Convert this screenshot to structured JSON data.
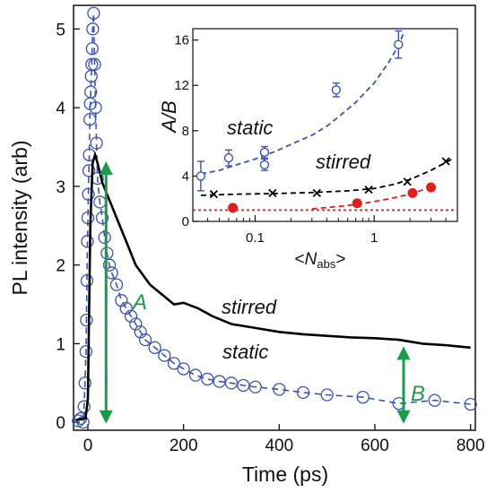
{
  "colors": {
    "static": "#3b55b0",
    "stirred": "#000000",
    "arrow": "#1a9a4a",
    "ratio_reference": "#e02020",
    "stirred_ratio_points": "#e02020"
  },
  "chart_data": [
    {
      "type": "line",
      "xlabel": "Time (ps)",
      "ylabel": "PL intensity (arb)",
      "xlim": [
        -30,
        810
      ],
      "ylim": [
        -0.1,
        5.3
      ],
      "xticks": [
        "0",
        "200",
        "400",
        "600",
        "800"
      ],
      "yticks": [
        "0",
        "1",
        "2",
        "3",
        "4",
        "5"
      ],
      "series": [
        {
          "name": "static",
          "style": "open-circles-dashed",
          "x": [
            -20,
            -15,
            -10,
            -8,
            -6,
            -4,
            -3,
            -2,
            -1,
            0,
            1,
            2,
            3,
            4,
            5,
            6,
            7,
            8,
            9,
            10,
            12,
            14,
            16,
            18,
            20,
            25,
            30,
            35,
            40,
            45,
            50,
            60,
            70,
            80,
            90,
            100,
            110,
            120,
            140,
            160,
            180,
            200,
            225,
            250,
            275,
            300,
            325,
            350,
            400,
            450,
            500,
            575,
            650,
            725,
            800
          ],
          "y": [
            0.02,
            0.05,
            0.0,
            0.2,
            0.5,
            0.9,
            1.3,
            1.8,
            2.3,
            2.6,
            2.9,
            3.2,
            3.4,
            3.85,
            4.05,
            4.2,
            4.4,
            4.55,
            4.75,
            5.0,
            5.2,
            4.55,
            4.0,
            3.55,
            3.1,
            2.8,
            2.6,
            2.35,
            2.15,
            2.0,
            1.9,
            1.75,
            1.55,
            1.45,
            1.35,
            1.25,
            1.15,
            1.05,
            0.95,
            0.85,
            0.75,
            0.68,
            0.6,
            0.55,
            0.52,
            0.5,
            0.47,
            0.45,
            0.42,
            0.38,
            0.35,
            0.32,
            0.24,
            0.28,
            0.23
          ]
        },
        {
          "name": "stirred",
          "style": "solid",
          "x": [
            -25,
            -5,
            0,
            5,
            10,
            15,
            20,
            30,
            40,
            60,
            80,
            100,
            130,
            160,
            180,
            200,
            230,
            260,
            300,
            350,
            400,
            450,
            500,
            550,
            600,
            650,
            700,
            750,
            800
          ],
          "y": [
            0.03,
            0.05,
            0.3,
            2.5,
            3.3,
            3.4,
            3.3,
            3.05,
            2.9,
            2.6,
            2.3,
            2.0,
            1.75,
            1.6,
            1.5,
            1.52,
            1.45,
            1.35,
            1.25,
            1.2,
            1.15,
            1.12,
            1.1,
            1.08,
            1.07,
            1.05,
            1.0,
            0.98,
            0.95
          ]
        }
      ],
      "annotations": [
        {
          "label": "A",
          "kind": "double-arrow",
          "x": 38,
          "y_from": 0.0,
          "y_to": 3.3
        },
        {
          "label": "B",
          "kind": "double-arrow",
          "x": 660,
          "y_from": 0.0,
          "y_to": 0.95
        },
        {
          "label": "stirred"
        },
        {
          "label": "static"
        }
      ]
    },
    {
      "type": "line",
      "xscale": "log",
      "ylabel": "A/B",
      "xlim": [
        0.03,
        5.0
      ],
      "ylim": [
        0,
        17
      ],
      "xticks": [
        "0.1",
        "1"
      ],
      "yticks": [
        "0",
        "4",
        "8",
        "12",
        "16"
      ],
      "series": [
        {
          "name": "static",
          "style": "open-circles-errorbars",
          "x": [
            0.035,
            0.06,
            0.12,
            0.12,
            0.48,
            1.6
          ],
          "y": [
            4.0,
            5.6,
            6.1,
            5.0,
            11.6,
            15.6
          ],
          "yerr": [
            1.3,
            0.7,
            0.5,
            0.5,
            0.6,
            1.2
          ],
          "fit_x": [
            0.035,
            0.05,
            0.07,
            0.1,
            0.15,
            0.2,
            0.3,
            0.4,
            0.5,
            0.7,
            1.0,
            1.3,
            1.6,
            1.8
          ],
          "fit_y": [
            4.2,
            4.5,
            5.0,
            5.5,
            6.2,
            6.8,
            7.6,
            8.4,
            9.2,
            10.5,
            12.2,
            13.9,
            15.5,
            16.8
          ]
        },
        {
          "name": "stirred",
          "style": "cross-markers",
          "x": [
            0.045,
            0.14,
            0.33,
            0.9,
            1.9,
            4.0
          ],
          "y": [
            2.4,
            2.5,
            2.5,
            2.8,
            3.5,
            5.3
          ],
          "fit_x": [
            0.035,
            0.07,
            0.14,
            0.3,
            0.6,
            1.0,
            1.5,
            2.0,
            3.0,
            4.0,
            4.5
          ],
          "fit_y": [
            2.3,
            2.4,
            2.45,
            2.55,
            2.7,
            2.9,
            3.3,
            3.7,
            4.5,
            5.2,
            5.5
          ]
        },
        {
          "name": "stirred-filled",
          "style": "filled-circles",
          "x": [
            0.065,
            0.72,
            2.1,
            3.0
          ],
          "y": [
            1.2,
            1.6,
            2.5,
            3.0
          ],
          "fit_x": [
            0.3,
            0.6,
            1.0,
            1.5,
            2.0,
            2.6,
            3.0
          ],
          "fit_y": [
            1.1,
            1.4,
            1.75,
            2.1,
            2.4,
            2.8,
            3.0
          ]
        },
        {
          "name": "reference",
          "style": "red-dotted",
          "y": 1.0
        }
      ],
      "annotations": [
        {
          "label": "static"
        },
        {
          "label": "stirred"
        }
      ]
    }
  ],
  "labels": {
    "main_xlabel": "Time (ps)",
    "main_ylabel": "PL intensity (arb)",
    "arrow_a": "A",
    "arrow_b": "B",
    "curve_stirred": "stirred",
    "curve_static": "static",
    "inset_static": "static",
    "inset_stirred": "stirred",
    "inset_ylabel": "A/B",
    "inset_xlabel_pre": "<",
    "inset_xlabel_n": "N",
    "inset_xlabel_sub": "abs",
    "inset_xlabel_post": ">"
  }
}
